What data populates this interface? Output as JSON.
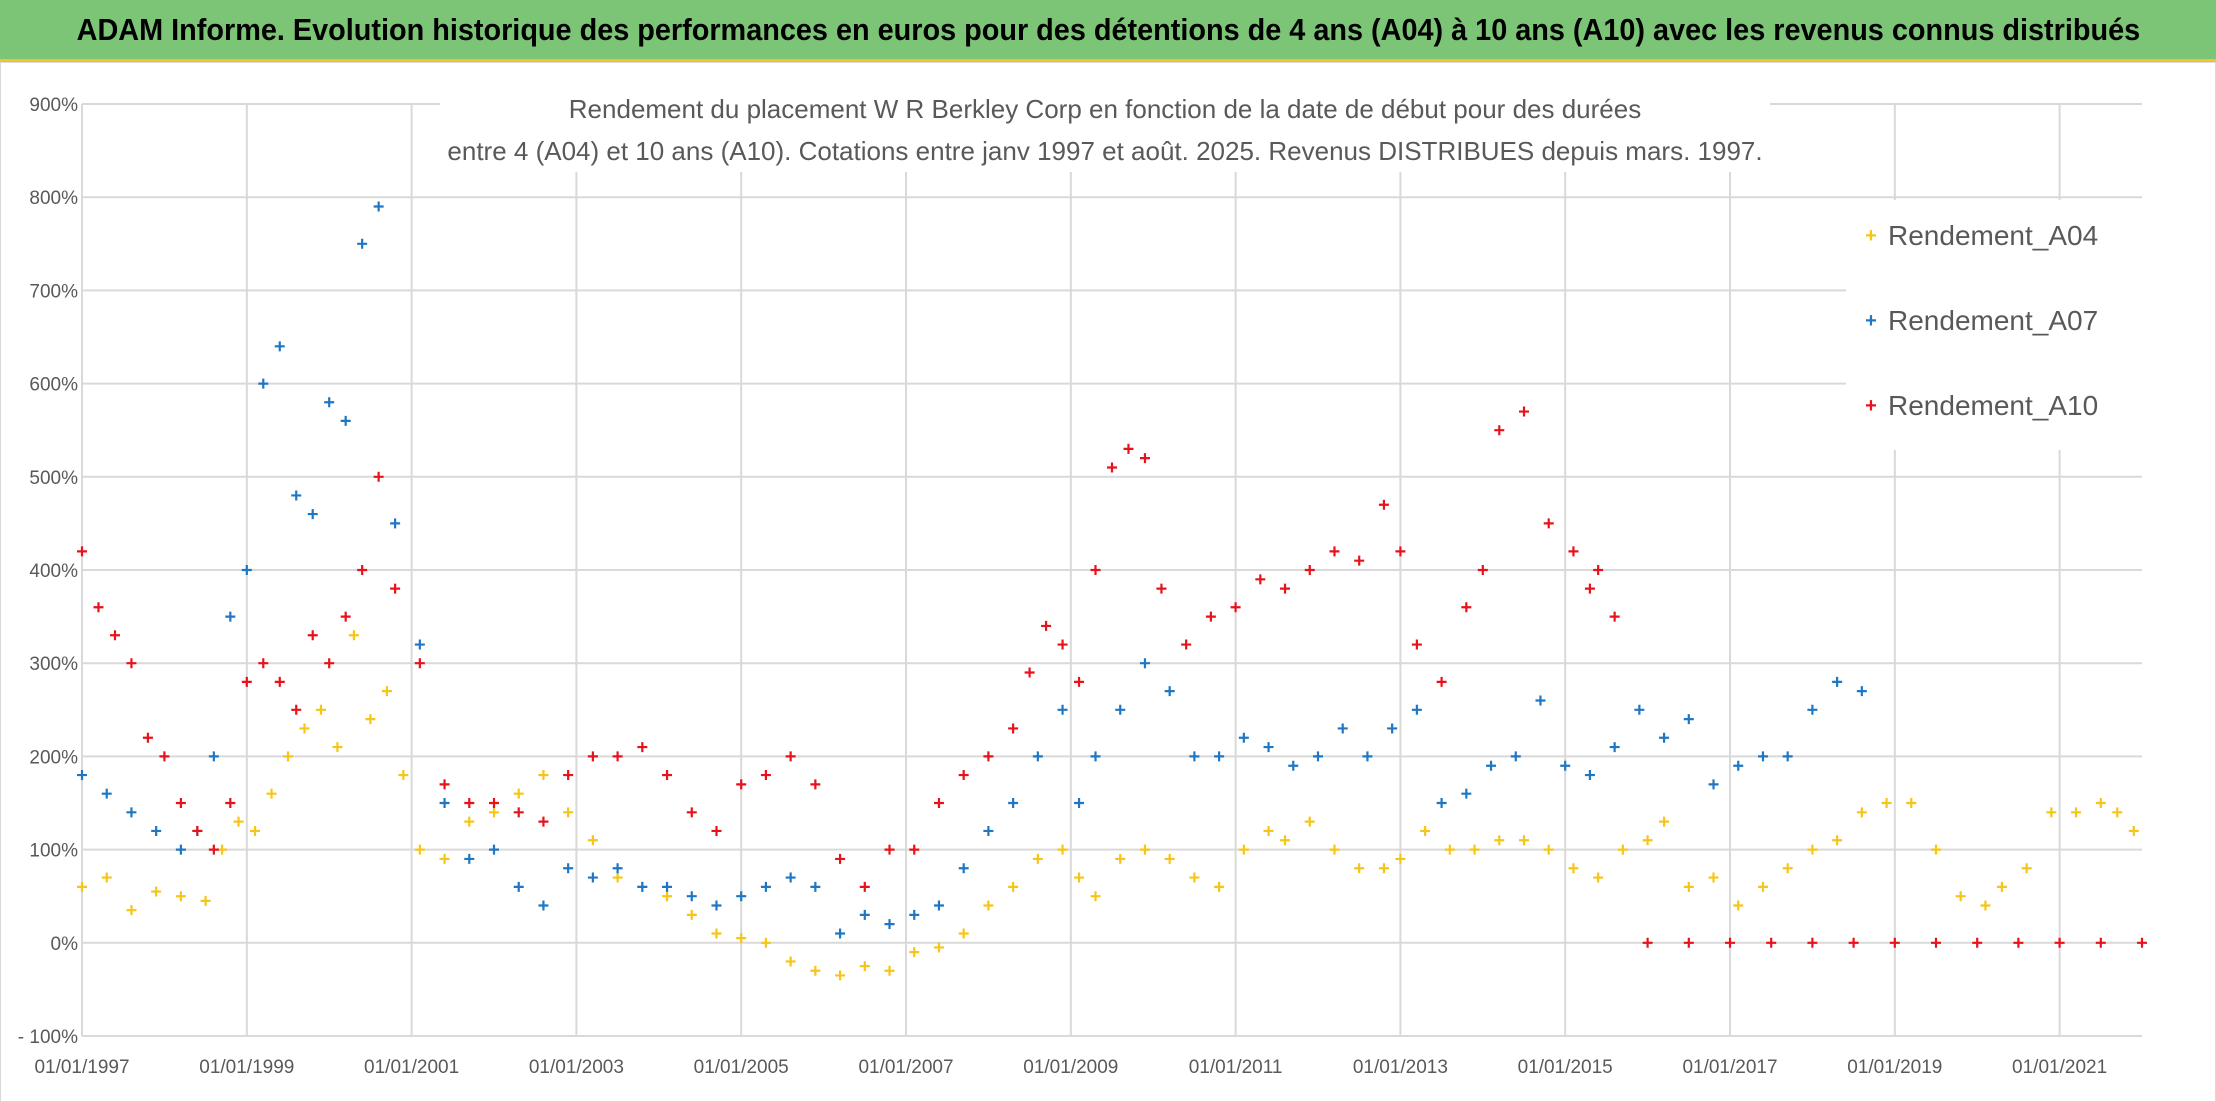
{
  "header": {
    "title": "ADAM Informe. Evolution historique des performances en euros pour des détentions de 4 ans (A04) à 10 ans (A10) avec les revenus connus distribués"
  },
  "chart_data": {
    "type": "scatter",
    "title_line1": "Rendement du placement W R Berkley Corp en fonction de la date de début pour des durées",
    "title_line2": "entre 4 (A04) et 10 ans (A10). Cotations entre janv 1997 et août. 2025. Revenus DISTRIBUES depuis mars. 1997.",
    "xlim": [
      1997.0,
      2022.0
    ],
    "ylim": [
      -100,
      900
    ],
    "x_tick_values": [
      1997,
      1999,
      2001,
      2003,
      2005,
      2007,
      2009,
      2011,
      2013,
      2015,
      2017,
      2019,
      2021
    ],
    "x_tick_labels": [
      "01/01/1997",
      "01/01/1999",
      "01/01/2001",
      "01/01/2003",
      "01/01/2005",
      "01/01/2007",
      "01/01/2009",
      "01/01/2011",
      "01/01/2013",
      "01/01/2015",
      "01/01/2017",
      "01/01/2019",
      "01/01/2021"
    ],
    "y_tick_values": [
      -100,
      0,
      100,
      200,
      300,
      400,
      500,
      600,
      700,
      800,
      900
    ],
    "y_tick_labels": [
      "- 100%",
      "0%",
      "100%",
      "200%",
      "300%",
      "400%",
      "500%",
      "600%",
      "700%",
      "800%",
      "900%"
    ],
    "grid": true,
    "legend_position": "top-right",
    "series": [
      {
        "name": "Rendement_A04",
        "color": "#f5c518",
        "x": [
          1997.0,
          1997.3,
          1997.6,
          1997.9,
          1998.2,
          1998.5,
          1998.7,
          1998.9,
          1999.1,
          1999.3,
          1999.5,
          1999.7,
          1999.9,
          2000.1,
          2000.3,
          2000.5,
          2000.7,
          2000.9,
          2001.1,
          2001.4,
          2001.7,
          2002.0,
          2002.3,
          2002.6,
          2002.9,
          2003.2,
          2003.5,
          2003.8,
          2004.1,
          2004.4,
          2004.7,
          2005.0,
          2005.3,
          2005.6,
          2005.9,
          2006.2,
          2006.5,
          2006.8,
          2007.1,
          2007.4,
          2007.7,
          2008.0,
          2008.3,
          2008.6,
          2008.9,
          2009.1,
          2009.3,
          2009.6,
          2009.9,
          2010.2,
          2010.5,
          2010.8,
          2011.1,
          2011.4,
          2011.6,
          2011.9,
          2012.2,
          2012.5,
          2012.8,
          2013.0,
          2013.3,
          2013.6,
          2013.9,
          2014.2,
          2014.5,
          2014.8,
          2015.1,
          2015.4,
          2015.7,
          2016.0,
          2016.2,
          2016.5,
          2016.8,
          2017.1,
          2017.4,
          2017.7,
          2018.0,
          2018.3,
          2018.6,
          2018.9,
          2019.2,
          2019.5,
          2019.8,
          2020.1,
          2020.3,
          2020.6,
          2020.9,
          2021.2,
          2021.5,
          2021.7,
          2021.9
        ],
        "y": [
          60,
          70,
          35,
          55,
          50,
          45,
          100,
          130,
          120,
          160,
          200,
          230,
          250,
          210,
          330,
          240,
          270,
          180,
          100,
          90,
          130,
          140,
          160,
          180,
          140,
          110,
          70,
          60,
          50,
          30,
          10,
          5,
          0,
          -20,
          -30,
          -35,
          -25,
          -30,
          -10,
          -5,
          10,
          40,
          60,
          90,
          100,
          70,
          50,
          90,
          100,
          90,
          70,
          60,
          100,
          120,
          110,
          130,
          100,
          80,
          80,
          90,
          120,
          100,
          100,
          110,
          110,
          100,
          80,
          70,
          100,
          110,
          130,
          60,
          70,
          40,
          60,
          80,
          100,
          110,
          140,
          150,
          150,
          100,
          50,
          40,
          60,
          80,
          140,
          140,
          150,
          140,
          120
        ]
      },
      {
        "name": "Rendement_A07",
        "color": "#1f77c4",
        "x": [
          1997.0,
          1997.3,
          1997.6,
          1997.9,
          1998.2,
          1998.4,
          1998.6,
          1998.8,
          1999.0,
          1999.2,
          1999.4,
          1999.6,
          1999.8,
          2000.0,
          2000.2,
          2000.4,
          2000.6,
          2000.8,
          2001.1,
          2001.4,
          2001.7,
          2002.0,
          2002.3,
          2002.6,
          2002.9,
          2003.2,
          2003.5,
          2003.8,
          2004.1,
          2004.4,
          2004.7,
          2005.0,
          2005.3,
          2005.6,
          2005.9,
          2006.2,
          2006.5,
          2006.8,
          2007.1,
          2007.4,
          2007.7,
          2008.0,
          2008.3,
          2008.6,
          2008.9,
          2009.1,
          2009.3,
          2009.6,
          2009.9,
          2010.2,
          2010.5,
          2010.8,
          2011.1,
          2011.4,
          2011.7,
          2012.0,
          2012.3,
          2012.6,
          2012.9,
          2013.2,
          2013.5,
          2013.8,
          2014.1,
          2014.4,
          2014.7,
          2015.0,
          2015.3,
          2015.6,
          2015.9,
          2016.2,
          2016.5,
          2016.8,
          2017.1,
          2017.4,
          2017.7,
          2018.0,
          2018.3,
          2018.6
        ],
        "y": [
          180,
          160,
          140,
          120,
          100,
          120,
          200,
          350,
          400,
          600,
          640,
          480,
          460,
          580,
          560,
          750,
          790,
          450,
          320,
          150,
          90,
          100,
          60,
          40,
          80,
          70,
          80,
          60,
          60,
          50,
          40,
          50,
          60,
          70,
          60,
          10,
          30,
          20,
          30,
          40,
          80,
          120,
          150,
          200,
          250,
          150,
          200,
          250,
          300,
          270,
          200,
          200,
          220,
          210,
          190,
          200,
          230,
          200,
          230,
          250,
          150,
          160,
          190,
          200,
          260,
          190,
          180,
          210,
          250,
          220,
          240,
          170,
          190,
          200,
          200,
          250,
          280,
          270
        ]
      },
      {
        "name": "Rendement_A10",
        "color": "#e8121b",
        "x": [
          1997.0,
          1997.2,
          1997.4,
          1997.6,
          1997.8,
          1998.0,
          1998.2,
          1998.4,
          1998.6,
          1998.8,
          1999.0,
          1999.2,
          1999.4,
          1999.6,
          1999.8,
          2000.0,
          2000.2,
          2000.4,
          2000.6,
          2000.8,
          2001.1,
          2001.4,
          2001.7,
          2002.0,
          2002.3,
          2002.6,
          2002.9,
          2003.2,
          2003.5,
          2003.8,
          2004.1,
          2004.4,
          2004.7,
          2005.0,
          2005.3,
          2005.6,
          2005.9,
          2006.2,
          2006.5,
          2006.8,
          2007.1,
          2007.4,
          2007.7,
          2008.0,
          2008.3,
          2008.5,
          2008.7,
          2008.9,
          2009.1,
          2009.3,
          2009.5,
          2009.7,
          2009.9,
          2010.1,
          2010.4,
          2010.7,
          2011.0,
          2011.3,
          2011.6,
          2011.9,
          2012.2,
          2012.5,
          2012.8,
          2013.0,
          2013.2,
          2013.5,
          2013.8,
          2014.0,
          2014.2,
          2014.5,
          2014.8,
          2015.1,
          2015.3,
          2015.4,
          2015.6,
          2016.0,
          2016.5,
          2017.0,
          2017.5,
          2018.0,
          2018.5,
          2019.0,
          2019.5,
          2020.0,
          2020.5,
          2021.0,
          2021.5,
          2022.0
        ],
        "y": [
          420,
          360,
          330,
          300,
          220,
          200,
          150,
          120,
          100,
          150,
          280,
          300,
          280,
          250,
          330,
          300,
          350,
          400,
          500,
          380,
          300,
          170,
          150,
          150,
          140,
          130,
          180,
          200,
          200,
          210,
          180,
          140,
          120,
          170,
          180,
          200,
          170,
          90,
          60,
          100,
          100,
          150,
          180,
          200,
          230,
          290,
          340,
          320,
          280,
          400,
          510,
          530,
          520,
          380,
          320,
          350,
          360,
          390,
          380,
          400,
          420,
          410,
          470,
          420,
          320,
          280,
          360,
          400,
          550,
          570,
          450,
          420,
          380,
          400,
          350,
          0,
          0,
          0,
          0,
          0,
          0,
          0,
          0,
          0,
          0,
          0,
          0,
          0
        ]
      }
    ]
  }
}
